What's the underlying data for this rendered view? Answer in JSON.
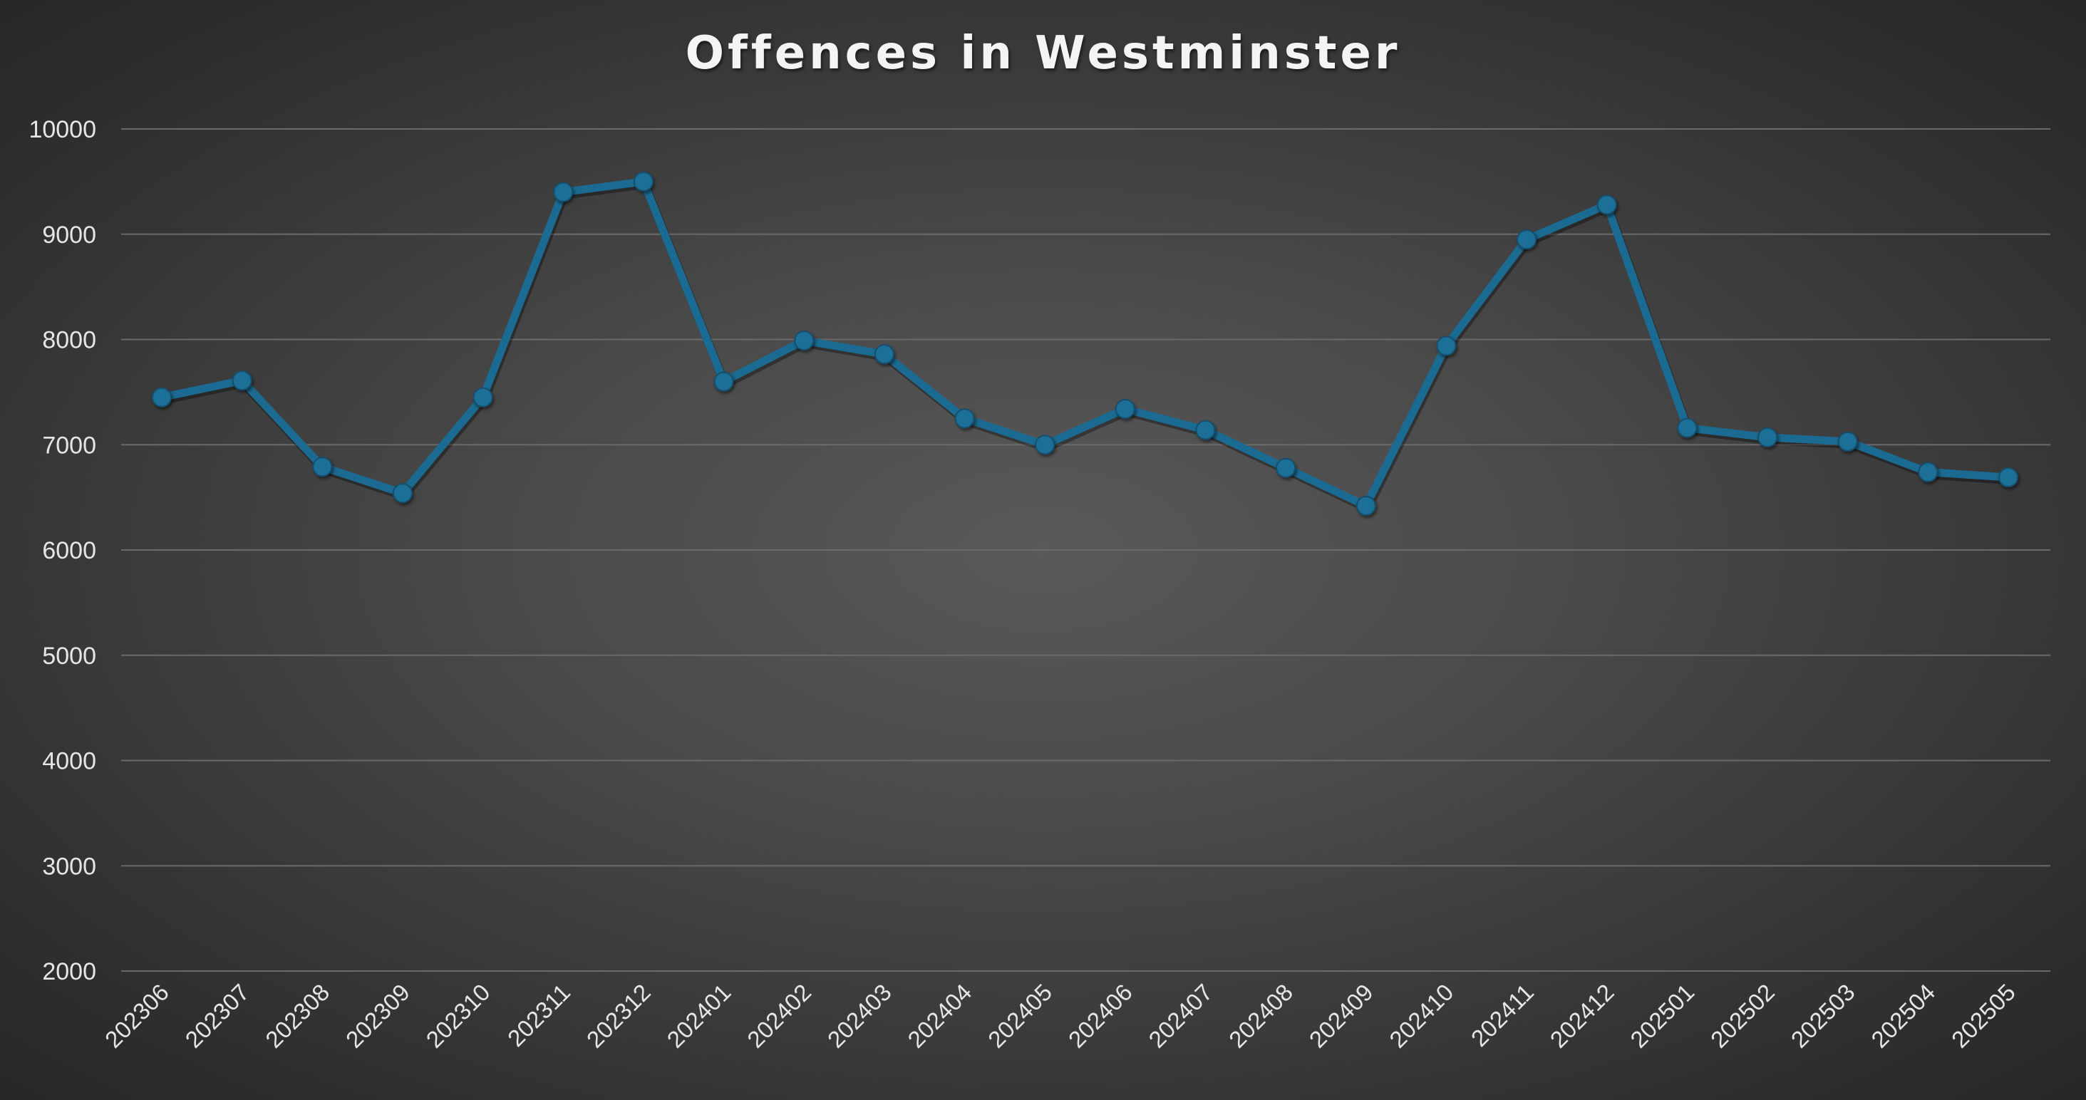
{
  "chart_data": {
    "type": "line",
    "title": "Offences in Westminster",
    "xlabel": "",
    "ylabel": "",
    "categories": [
      "202306",
      "202307",
      "202308",
      "202309",
      "202310",
      "202311",
      "202312",
      "202401",
      "202402",
      "202403",
      "202404",
      "202405",
      "202406",
      "202407",
      "202408",
      "202409",
      "202410",
      "202411",
      "202412",
      "202501",
      "202502",
      "202503",
      "202504",
      "202505"
    ],
    "series": [
      {
        "values": [
          7450,
          7610,
          6790,
          6540,
          7450,
          9400,
          9500,
          7600,
          7990,
          7860,
          7250,
          7000,
          7340,
          7140,
          6780,
          6420,
          7940,
          8950,
          9280,
          7160,
          7070,
          7030,
          6740,
          6690
        ],
        "color": "#1b6a91",
        "marker": "circle"
      }
    ],
    "ylim": [
      2000,
      10000
    ],
    "yticks": [
      "2000",
      "3000",
      "4000",
      "5000",
      "6000",
      "7000",
      "8000",
      "9000",
      "10000"
    ],
    "grid": true,
    "legend": "none"
  }
}
